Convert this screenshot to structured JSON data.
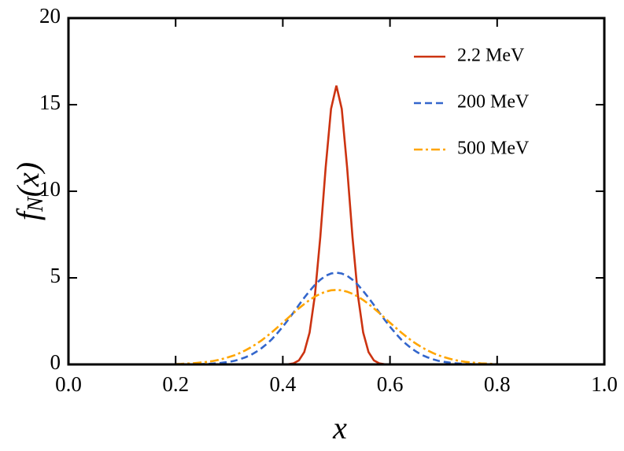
{
  "chart_data": {
    "type": "line",
    "xlabel": "x",
    "ylabel": [
      "f",
      "N",
      "(x)"
    ],
    "x": [
      0.2,
      0.21,
      0.22,
      0.23,
      0.24,
      0.25,
      0.26,
      0.27,
      0.28,
      0.29,
      0.3,
      0.31,
      0.32,
      0.33,
      0.34,
      0.35,
      0.36,
      0.37,
      0.38,
      0.39,
      0.4,
      0.41,
      0.42,
      0.43,
      0.44,
      0.45,
      0.46,
      0.47,
      0.48,
      0.49,
      0.5,
      0.51,
      0.52,
      0.53,
      0.54,
      0.55,
      0.56,
      0.57,
      0.58,
      0.59,
      0.6,
      0.61,
      0.62,
      0.63,
      0.64,
      0.65,
      0.66,
      0.67,
      0.68,
      0.69,
      0.7,
      0.71,
      0.72,
      0.73,
      0.74,
      0.75,
      0.76,
      0.77,
      0.78,
      0.79,
      0.8
    ],
    "series": [
      {
        "name": "2.2 MeV",
        "color": "#cc3311",
        "linestyle": "solid",
        "values": [
          0,
          0,
          0,
          0,
          0,
          0,
          0,
          0,
          0,
          0,
          0,
          0,
          0,
          0,
          0,
          0,
          0,
          0,
          0,
          0,
          0,
          0.01,
          0.06,
          0.23,
          0.71,
          1.84,
          4.02,
          7.37,
          11.38,
          14.76,
          16.1,
          14.76,
          11.38,
          7.37,
          4.02,
          1.84,
          0.71,
          0.23,
          0.06,
          0.01,
          0,
          0,
          0,
          0,
          0,
          0,
          0,
          0,
          0,
          0,
          0,
          0,
          0,
          0,
          0,
          0,
          0,
          0,
          0,
          0,
          0
        ]
      },
      {
        "name": "200 MeV",
        "color": "#3366cc",
        "linestyle": "dashed",
        "values": [
          0,
          0,
          0,
          0.01,
          0.01,
          0.02,
          0.03,
          0.05,
          0.07,
          0.11,
          0.15,
          0.21,
          0.3,
          0.41,
          0.54,
          0.72,
          0.93,
          1.18,
          1.47,
          1.81,
          2.18,
          2.58,
          3,
          3.43,
          3.85,
          4.24,
          4.6,
          4.89,
          5.12,
          5.25,
          5.3,
          5.25,
          5.12,
          4.89,
          4.6,
          4.24,
          3.85,
          3.43,
          3,
          2.58,
          2.18,
          1.81,
          1.47,
          1.18,
          0.93,
          0.72,
          0.54,
          0.41,
          0.3,
          0.21,
          0.15,
          0.11,
          0.07,
          0.05,
          0.03,
          0.02,
          0.01,
          0.01,
          0,
          0,
          0
        ]
      },
      {
        "name": "500 MeV",
        "color": "#ffa500",
        "linestyle": "dashdot",
        "values": [
          0.02,
          0.03,
          0.05,
          0.06,
          0.09,
          0.12,
          0.15,
          0.2,
          0.26,
          0.34,
          0.43,
          0.53,
          0.66,
          0.81,
          0.98,
          1.17,
          1.38,
          1.62,
          1.87,
          2.14,
          2.41,
          2.69,
          2.97,
          3.24,
          3.49,
          3.72,
          3.92,
          4.08,
          4.2,
          4.28,
          4.3,
          4.28,
          4.2,
          4.08,
          3.92,
          3.72,
          3.49,
          3.24,
          2.97,
          2.69,
          2.41,
          2.14,
          1.87,
          1.62,
          1.38,
          1.17,
          0.98,
          0.81,
          0.66,
          0.53,
          0.43,
          0.34,
          0.26,
          0.2,
          0.15,
          0.12,
          0.09,
          0.06,
          0.05,
          0.03,
          0.02
        ]
      }
    ],
    "xlim": [
      0,
      1
    ],
    "xticks": [
      {
        "value": 0,
        "label": "0.0"
      },
      0.2,
      0.4,
      0.6,
      0.8,
      {
        "value": 1,
        "label": "1.0"
      }
    ],
    "ylim": [
      0,
      20
    ],
    "yticks": [
      0,
      5,
      10,
      15,
      20
    ],
    "grid": false,
    "legend": "upper right"
  }
}
